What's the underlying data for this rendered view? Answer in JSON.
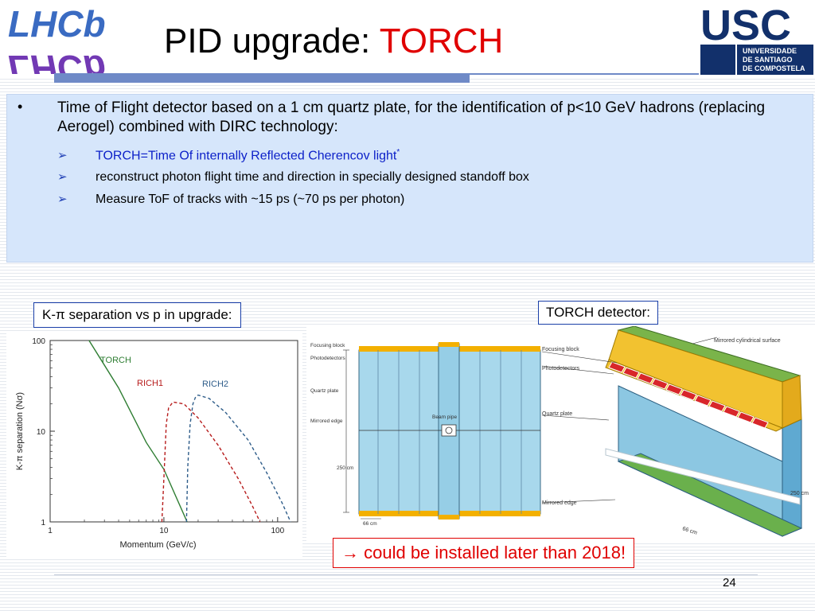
{
  "header": {
    "title_main": "PID upgrade: ",
    "title_accent": "TORCH",
    "left_logo_text": "LHCb",
    "right_logo": {
      "letters": "USC",
      "line1": "UNIVERSIDADE",
      "line2": "DE SANTIAGO",
      "line3": "DE COMPOSTELA"
    }
  },
  "content": {
    "bullet_symbol": "•",
    "bullet_text": "Time of Flight detector based on a 1 cm quartz plate, for the identification of p<10 GeV hadrons (replacing Aerogel) combined with DIRC technology:",
    "arrow_symbol": "➢",
    "subbullets": [
      {
        "text": "TORCH=Time Of internally Reflected Cherencov light",
        "footnote": "*"
      },
      {
        "text": "reconstruct photon flight time and direction in specially designed standoff box"
      },
      {
        "text": "Measure ToF of tracks with ~15 ps (~70 ps per photon)"
      }
    ]
  },
  "labels": {
    "kpi": "K-π separation vs p in upgrade:",
    "torch": "TORCH detector:",
    "install": "→ could be installed later than 2018!"
  },
  "chart_data": {
    "type": "line",
    "xlabel": "Momentum  (GeV/c)",
    "ylabel": "K-π separation (Nσ)",
    "xscale": "log",
    "yscale": "log",
    "xlim": [
      1,
      150
    ],
    "ylim": [
      1,
      100
    ],
    "xticks": [
      "1",
      "10",
      "100"
    ],
    "yticks": [
      "1",
      "10",
      "100"
    ],
    "grid": false,
    "series": [
      {
        "name": "TORCH",
        "color": "#2e7d32",
        "style": "solid",
        "x": [
          2.2,
          4,
          7,
          10,
          16
        ],
        "y": [
          100,
          30,
          7.5,
          3.8,
          1
        ]
      },
      {
        "name": "RICH1",
        "color": "#b71c1c",
        "style": "dashed",
        "x": [
          9.6,
          10,
          10.5,
          11,
          12,
          15,
          20,
          30,
          45,
          60,
          70
        ],
        "y": [
          1,
          3,
          12,
          18,
          21,
          20,
          14,
          7,
          3,
          1.5,
          1
        ]
      },
      {
        "name": "RICH2",
        "color": "#2f5d8a",
        "style": "dashed",
        "x": [
          15.8,
          16.2,
          17,
          18,
          19,
          20,
          25,
          35,
          55,
          80,
          110,
          130
        ],
        "y": [
          1,
          4,
          12,
          20,
          24,
          25,
          23,
          16,
          8,
          3.5,
          1.6,
          1
        ]
      }
    ]
  },
  "diagram_left": {
    "labels": [
      "Focusing block",
      "Photodetectors",
      "Quartz plate",
      "Mirrored edge",
      "250 cm",
      "66 cm",
      "Beam pipe"
    ]
  },
  "diagram_right": {
    "labels": [
      "Mirrored cylindrical surface",
      "Focusing block",
      "Photodetectors",
      "Quartz plate",
      "Mirrored edge",
      "250 cm",
      "66 cm"
    ]
  },
  "footer": {
    "page_number": "24"
  }
}
